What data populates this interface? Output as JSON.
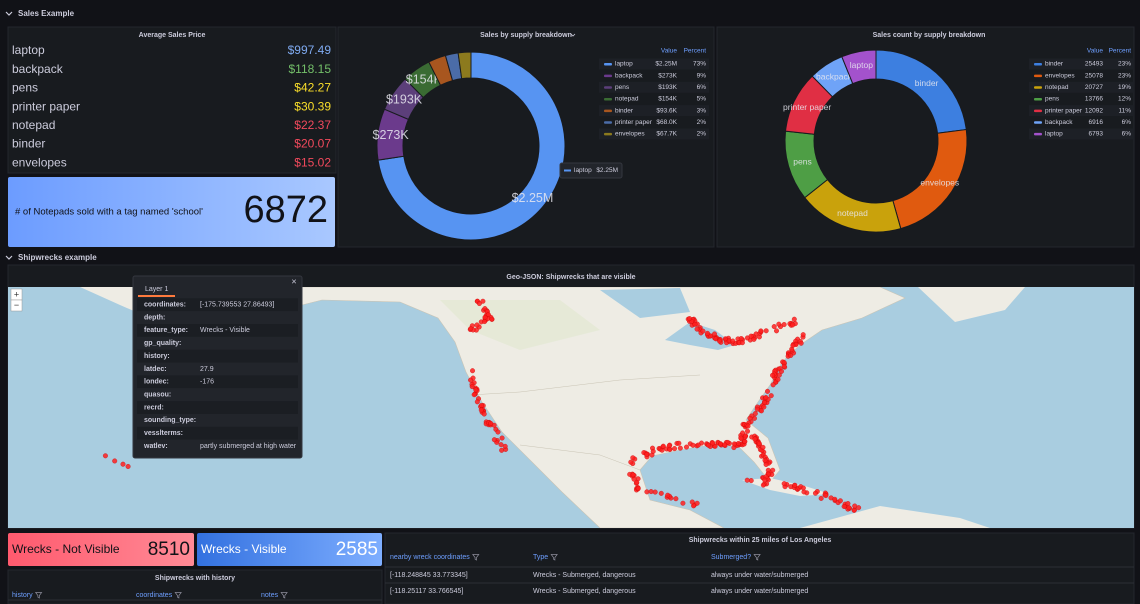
{
  "sections": [
    "Sales Example",
    "Shipwrecks example"
  ],
  "avg_price": {
    "title": "Average Sales Price",
    "rows": [
      {
        "name": "laptop",
        "value": "$997.49",
        "color": "#7ea9ef"
      },
      {
        "name": "backpack",
        "value": "$118.15",
        "color": "#73bf69"
      },
      {
        "name": "pens",
        "value": "$42.27",
        "color": "#fade2a"
      },
      {
        "name": "printer paper",
        "value": "$30.39",
        "color": "#fade2a"
      },
      {
        "name": "notepad",
        "value": "$22.37",
        "color": "#f2495c"
      },
      {
        "name": "binder",
        "value": "$20.07",
        "color": "#f2495c"
      },
      {
        "name": "envelopes",
        "value": "$15.02",
        "color": "#f2495c"
      }
    ]
  },
  "notepad_stat": {
    "label": "# of Notepads sold with a tag named 'school'",
    "value": 6872
  },
  "sales_donut": {
    "type": "donut",
    "title": "Sales by supply breakdown",
    "columns": [
      "Value",
      "Percent"
    ],
    "slices": [
      {
        "name": "laptop",
        "value": 2250000,
        "value_label": "$2.25M",
        "percent": "73%",
        "color": "#5794f2"
      },
      {
        "name": "backpack",
        "value": 273000,
        "value_label": "$273K",
        "percent": "9%",
        "color": "#6b3a8c"
      },
      {
        "name": "pens",
        "value": 193000,
        "value_label": "$193K",
        "percent": "6%",
        "color": "#5c3f7a"
      },
      {
        "name": "notepad",
        "value": 154000,
        "value_label": "$154K",
        "percent": "5%",
        "color": "#3a6b33"
      },
      {
        "name": "binder",
        "value": 93600,
        "value_label": "$93.6K",
        "percent": "3%",
        "color": "#a8561f"
      },
      {
        "name": "printer paper",
        "value": 68000,
        "value_label": "$68.0K",
        "percent": "2%",
        "color": "#4b6ca8"
      },
      {
        "name": "envelopes",
        "value": 67700,
        "value_label": "$67.7K",
        "percent": "2%",
        "color": "#8c7a1e"
      }
    ]
  },
  "count_donut": {
    "type": "donut",
    "title": "Sales count by supply breakdown",
    "columns": [
      "Value",
      "Percent"
    ],
    "slices": [
      {
        "name": "binder",
        "value": 25493,
        "percent": "23%",
        "color": "#3d7fe0"
      },
      {
        "name": "envelopes",
        "value": 25078,
        "percent": "23%",
        "color": "#e05a0f"
      },
      {
        "name": "notepad",
        "value": 20727,
        "percent": "19%",
        "color": "#c9a20c"
      },
      {
        "name": "pens",
        "value": 13766,
        "percent": "12%",
        "color": "#4e9e45"
      },
      {
        "name": "printer paper",
        "value": 12092,
        "percent": "11%",
        "color": "#e02f44"
      },
      {
        "name": "backpack",
        "value": 6916,
        "percent": "6%",
        "color": "#6fa3f7"
      },
      {
        "name": "laptop",
        "value": 6793,
        "percent": "6%",
        "color": "#a352cc"
      }
    ]
  },
  "map": {
    "title": "Geo-JSON: Shipwrecks that are visible",
    "zoom": [
      "+",
      "−"
    ],
    "popup": {
      "tab": "Layer 1",
      "close": "×",
      "rows": [
        {
          "key": "coordinates:",
          "value": "[-175.739553 27.86493]"
        },
        {
          "key": "depth:"
        },
        {
          "key": "feature_type:",
          "value": "Wrecks - Visible"
        },
        {
          "key": "gp_quality:"
        },
        {
          "key": "history:"
        },
        {
          "key": "latdec:",
          "value": 27.9
        },
        {
          "key": "londec:",
          "value": -176
        },
        {
          "key": "quasou:"
        },
        {
          "key": "recrd:"
        },
        {
          "key": "sounding_type:"
        },
        {
          "key": "vesslterms:"
        },
        {
          "key": "watlev:",
          "value": "partly submerged at high water"
        }
      ]
    }
  },
  "wreck_stats": [
    {
      "label": "Wrecks - Not Visible",
      "value": 8510,
      "color": "#ff6b7d"
    },
    {
      "label": "Wrecks - Visible",
      "value": 2585,
      "color": "#3d7fe0"
    }
  ],
  "history_table": {
    "title": "Shipwrecks with history",
    "columns": [
      "history",
      "coordinates",
      "notes"
    ]
  },
  "la_table": {
    "title": "Shipwrecks within 25 miles of Los Angeles",
    "columns": [
      "nearby wreck coordinates",
      "Type",
      "Submerged?"
    ],
    "rows": [
      [
        "[-118.248845 33.773345]",
        "Wrecks - Submerged, dangerous",
        "always under water/submerged"
      ],
      [
        "[-118.25117 33.766545]",
        "Wrecks - Submerged, dangerous",
        "always under water/submerged"
      ]
    ]
  }
}
